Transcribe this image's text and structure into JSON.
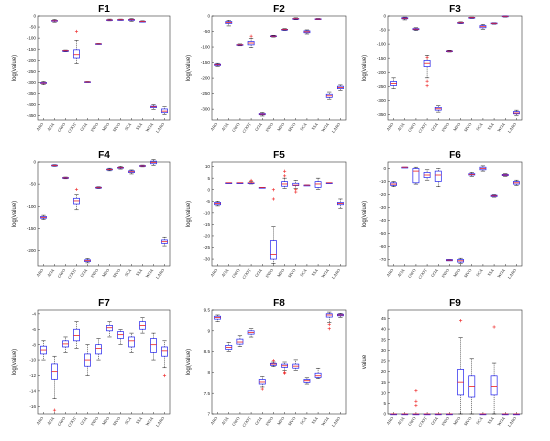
{
  "chart_data": [
    {
      "type": "box",
      "title": "F1",
      "ylabel": "log(value)",
      "ylim": [
        -470,
        0
      ],
      "yticks": [
        0,
        -50,
        -100,
        -150,
        -200,
        -250,
        -300,
        -350,
        -400,
        -450
      ],
      "categories": [
        "ARO",
        "AOA",
        "GWO",
        "COOT",
        "GOA",
        "INFO",
        "MFO",
        "MVO",
        "SCA",
        "SSA",
        "WOA",
        "LARO"
      ],
      "boxes": [
        [
          -310,
          -305,
          -303,
          -300,
          -296
        ],
        [
          -28,
          -24,
          -22,
          -20,
          -16
        ],
        [
          -161,
          -158,
          -157,
          -156,
          -154
        ],
        [
          -215,
          -190,
          -175,
          -153,
          -110
        ],
        [
          -300,
          -299,
          -298,
          -297,
          -296
        ],
        [
          -128,
          -127,
          -126,
          -125,
          -124
        ],
        [
          -22,
          -19,
          -18,
          -17,
          -14
        ],
        [
          -20,
          -18,
          -17,
          -16,
          -14
        ],
        [
          -24,
          -20,
          -17,
          -15,
          -12
        ],
        [
          -28,
          -26,
          -25,
          -24,
          -22
        ],
        [
          -422,
          -414,
          -410,
          -407,
          -400
        ],
        [
          -445,
          -437,
          -430,
          -420,
          -410
        ]
      ],
      "outliers": [
        [],
        [],
        [],
        [
          [
            9,
            -70
          ]
        ],
        [],
        [],
        [],
        [],
        [],
        [],
        [],
        []
      ]
    },
    {
      "type": "box",
      "title": "F2",
      "ylabel": "log(value)",
      "ylim": [
        -335,
        0
      ],
      "yticks": [
        0,
        -50,
        -100,
        -150,
        -200,
        -250,
        -300
      ],
      "categories": [
        "ARO",
        "AOA",
        "GWO",
        "COOT",
        "GOA",
        "INFO",
        "MFO",
        "MVO",
        "SCA",
        "SSA",
        "WOA",
        "LARO"
      ],
      "boxes": [
        [
          -162,
          -159,
          -157,
          -155,
          -152
        ],
        [
          -32,
          -24,
          -21,
          -18,
          -14
        ],
        [
          -96,
          -94,
          -93,
          -92,
          -90
        ],
        [
          -102,
          -93,
          -87,
          -82,
          -72
        ],
        [
          -322,
          -318,
          -316,
          -314,
          -311
        ],
        [
          -68,
          -66,
          -65,
          -64,
          -62
        ],
        [
          -47,
          -45,
          -44,
          -43,
          -41
        ],
        [
          -12,
          -10,
          -9,
          -8,
          -6
        ],
        [
          -58,
          -54,
          -51,
          -48,
          -45
        ],
        [
          -12,
          -11,
          -10,
          -9,
          -8
        ],
        [
          -268,
          -262,
          -257,
          -252,
          -245
        ],
        [
          -240,
          -234,
          -230,
          -226,
          -222
        ]
      ],
      "outliers": [
        [],
        [],
        [],
        [
          [
            9,
            -65
          ]
        ],
        [],
        [],
        [],
        [],
        [],
        [],
        [],
        []
      ]
    },
    {
      "type": "box",
      "title": "F3",
      "ylabel": "log(value)",
      "ylim": [
        -370,
        0
      ],
      "yticks": [
        0,
        -50,
        -100,
        -150,
        -200,
        -250,
        -300,
        -350
      ],
      "categories": [
        "ARO",
        "AOA",
        "GWO",
        "COOT",
        "GOA",
        "INFO",
        "MFO",
        "MVO",
        "SCA",
        "SSA",
        "WOA",
        "LARO"
      ],
      "boxes": [
        [
          -258,
          -247,
          -240,
          -233,
          -220
        ],
        [
          -14,
          -10,
          -8,
          -6,
          -4
        ],
        [
          -52,
          -49,
          -47,
          -45,
          -42
        ],
        [
          -220,
          -180,
          -168,
          -158,
          -140
        ],
        [
          -342,
          -335,
          -330,
          -325,
          -318
        ],
        [
          -128,
          -126,
          -125,
          -124,
          -122
        ],
        [
          -27,
          -25,
          -24,
          -23,
          -21
        ],
        [
          -9,
          -7,
          -6,
          -5,
          -4
        ],
        [
          -48,
          -42,
          -38,
          -34,
          -30
        ],
        [
          -29,
          -27,
          -26,
          -25,
          -24
        ],
        [
          -4,
          -2,
          -1,
          0,
          1
        ],
        [
          -355,
          -348,
          -345,
          -340,
          -335
        ]
      ],
      "outliers": [
        [],
        [],
        [],
        [
          [
            9,
            -248
          ],
          [
            9,
            -232
          ],
          [
            9,
            -148
          ]
        ],
        [],
        [],
        [],
        [],
        [],
        [],
        [],
        []
      ]
    },
    {
      "type": "box",
      "title": "F4",
      "ylabel": "log(value)",
      "ylim": [
        -235,
        0
      ],
      "yticks": [
        0,
        -50,
        -100,
        -150,
        -200
      ],
      "categories": [
        "ARO",
        "AOA",
        "GWO",
        "COOT",
        "GOA",
        "INFO",
        "MFO",
        "MVO",
        "SCA",
        "SSA",
        "WOA",
        "LARO"
      ],
      "boxes": [
        [
          -130,
          -127,
          -125,
          -123,
          -120
        ],
        [
          -10,
          -9,
          -8,
          -7,
          -6
        ],
        [
          -38,
          -37,
          -36,
          -35,
          -34
        ],
        [
          -108,
          -95,
          -88,
          -82,
          -74
        ],
        [
          -228,
          -225,
          -223,
          -221,
          -218
        ],
        [
          -60,
          -59,
          -58,
          -57,
          -56
        ],
        [
          -20,
          -18,
          -17,
          -16,
          -14
        ],
        [
          -16,
          -14,
          -13,
          -12,
          -10
        ],
        [
          -27,
          -24,
          -22,
          -20,
          -18
        ],
        [
          -11,
          -10,
          -9,
          -8,
          -7
        ],
        [
          -8,
          -4,
          -1,
          2,
          6
        ],
        [
          -190,
          -184,
          -180,
          -176,
          -170
        ]
      ],
      "outliers": [
        [],
        [],
        [],
        [
          [
            9,
            -62
          ]
        ],
        [],
        [],
        [],
        [],
        [],
        [],
        [],
        []
      ]
    },
    {
      "type": "box",
      "title": "F5",
      "ylabel": "log(value)",
      "ylim": [
        -33,
        12
      ],
      "yticks": [
        10,
        5,
        0,
        -5,
        -10,
        -15,
        -20,
        -25,
        -30
      ],
      "categories": [
        "ARO",
        "AOA",
        "GWO",
        "COOT",
        "GOA",
        "INFO",
        "MFO",
        "MVO",
        "SCA",
        "SSA",
        "WOA",
        "LARO"
      ],
      "boxes": [
        [
          -7,
          -6.5,
          -6,
          -5.5,
          -5
        ],
        [
          3,
          3,
          3,
          3,
          3
        ],
        [
          3,
          3,
          3,
          3,
          3
        ],
        [
          2.5,
          3,
          3,
          3,
          3.5
        ],
        [
          1,
          1,
          1,
          1,
          1
        ],
        [
          -32,
          -30,
          -28,
          -22,
          -16
        ],
        [
          0.5,
          1.5,
          2.5,
          3.5,
          5
        ],
        [
          0.5,
          1.8,
          2,
          2.8,
          4
        ],
        [
          2,
          2,
          2,
          2,
          2
        ],
        [
          0,
          1,
          2.5,
          3.5,
          5
        ],
        [
          3,
          3,
          3,
          3,
          3
        ],
        [
          -8,
          -6.5,
          -6,
          -5.5,
          -4
        ]
      ],
      "outliers": [
        [],
        [],
        [],
        [
          [
            9,
            4
          ]
        ],
        [],
        [
          [
            9,
            0
          ],
          [
            9,
            -4
          ]
        ],
        [
          [
            9,
            6
          ],
          [
            9,
            8
          ]
        ],
        [
          [
            9,
            0
          ],
          [
            9,
            -1
          ]
        ],
        [],
        [],
        [],
        []
      ]
    },
    {
      "type": "box",
      "title": "F6",
      "ylabel": "log(value)",
      "ylim": [
        -75,
        5
      ],
      "yticks": [
        0,
        -10,
        -20,
        -30,
        -40,
        -50,
        -60,
        -70
      ],
      "categories": [
        "ARO",
        "AOA",
        "GWO",
        "COOT",
        "GOA",
        "INFO",
        "MFO",
        "MVO",
        "SCA",
        "SSA",
        "WOA",
        "LARO"
      ],
      "boxes": [
        [
          -14,
          -13,
          -12,
          -11,
          -10
        ],
        [
          1,
          1,
          1,
          1,
          1
        ],
        [
          -12,
          -11,
          -2,
          0,
          1
        ],
        [
          -9,
          -7,
          -5,
          -3,
          -1
        ],
        [
          -14,
          -10,
          -5,
          -2,
          0
        ],
        [
          -71,
          -71,
          -70.5,
          -70,
          -70
        ],
        [
          -73,
          -72,
          -71,
          -70,
          -69
        ],
        [
          -6,
          -5,
          -4.5,
          -4,
          -3
        ],
        [
          -2,
          -1,
          0,
          1,
          2
        ],
        [
          -22,
          -21.5,
          -21,
          -20.5,
          -20
        ],
        [
          -6,
          -5.5,
          -5,
          -4.5,
          -4
        ],
        [
          -13,
          -12,
          -11,
          -10,
          -9
        ]
      ],
      "outliers": [
        [],
        [],
        [],
        [],
        [],
        [],
        [],
        [],
        [],
        [],
        [],
        []
      ]
    },
    {
      "type": "box",
      "title": "F7",
      "ylabel": "log(value)",
      "ylim": [
        -17,
        -3.5
      ],
      "yticks": [
        -4,
        -6,
        -8,
        -10,
        -12,
        -14,
        -16
      ],
      "categories": [
        "ARO",
        "AOA",
        "GWO",
        "COOT",
        "GOA",
        "INFO",
        "MFO",
        "MVO",
        "SCA",
        "SSA",
        "WOA",
        "LARO"
      ],
      "boxes": [
        [
          -10,
          -9.2,
          -8.7,
          -8.2,
          -7.5
        ],
        [
          -15,
          -12.5,
          -11.5,
          -10.5,
          -9.5
        ],
        [
          -9,
          -8.3,
          -7.9,
          -7.5,
          -7
        ],
        [
          -8.5,
          -7.5,
          -6.8,
          -6,
          -5
        ],
        [
          -12,
          -10.8,
          -10,
          -9.2,
          -8
        ],
        [
          -10,
          -9.2,
          -8.5,
          -8,
          -7.2
        ],
        [
          -7,
          -6.2,
          -5.8,
          -5.5,
          -5
        ],
        [
          -8,
          -7.2,
          -6.7,
          -6.3,
          -6
        ],
        [
          -9,
          -8.3,
          -7.5,
          -7,
          -6.5
        ],
        [
          -6.5,
          -6,
          -5.5,
          -5,
          -4.5
        ],
        [
          -10,
          -9,
          -8,
          -7.2,
          -6.5
        ],
        [
          -11,
          -9.5,
          -8.8,
          -8.3,
          -7.5
        ]
      ],
      "outliers": [
        [],
        [
          [
            9,
            -16.5
          ]
        ],
        [],
        [],
        [],
        [],
        [],
        [],
        [],
        [],
        [],
        [
          [
            9,
            -12
          ]
        ]
      ]
    },
    {
      "type": "box",
      "title": "F8",
      "ylabel": "log(value)",
      "ylim": [
        7,
        9.5
      ],
      "yticks": [
        9.5,
        9,
        8.5,
        8,
        7.5,
        7
      ],
      "categories": [
        "ARO",
        "AOA",
        "GWO",
        "COOT",
        "GOA",
        "INFO",
        "MFO",
        "MVO",
        "SCA",
        "SSA",
        "WOA",
        "LARO"
      ],
      "boxes": [
        [
          9.22,
          9.28,
          9.32,
          9.35,
          9.38
        ],
        [
          8.5,
          8.55,
          8.6,
          8.65,
          8.72
        ],
        [
          8.62,
          8.68,
          8.73,
          8.8,
          8.88
        ],
        [
          8.85,
          8.92,
          8.96,
          9,
          9.05
        ],
        [
          7.65,
          7.72,
          7.77,
          7.83,
          7.9
        ],
        [
          8.14,
          8.17,
          8.2,
          8.22,
          8.25
        ],
        [
          8.05,
          8.12,
          8.16,
          8.2,
          8.25
        ],
        [
          8.05,
          8.1,
          8.15,
          8.2,
          8.3
        ],
        [
          7.72,
          7.76,
          7.8,
          7.83,
          7.87
        ],
        [
          7.85,
          7.88,
          7.92,
          7.98,
          8.1
        ],
        [
          9.2,
          9.33,
          9.38,
          9.41,
          9.45
        ],
        [
          9.32,
          9.36,
          9.38,
          9.4,
          9.42
        ]
      ],
      "outliers": [
        [],
        [],
        [],
        [],
        [
          [
            9,
            7.6
          ]
        ],
        [
          [
            9,
            8.28
          ]
        ],
        [
          [
            9,
            7.98
          ],
          [
            9,
            8.0
          ]
        ],
        [],
        [],
        [],
        [
          [
            9,
            9.05
          ],
          [
            9,
            9.15
          ]
        ],
        []
      ]
    },
    {
      "type": "box",
      "title": "F9",
      "ylabel": "value",
      "ylim": [
        0,
        49
      ],
      "yticks": [
        0,
        5,
        10,
        15,
        20,
        25,
        30,
        35,
        40,
        45
      ],
      "categories": [
        "ARO",
        "AOA",
        "GWO",
        "COOT",
        "GOA",
        "INFO",
        "MFO",
        "MVO",
        "SCA",
        "SSA",
        "WOA",
        "LARO"
      ],
      "boxes": [
        [
          0,
          0,
          0,
          0,
          0
        ],
        [
          0,
          0,
          0,
          0,
          0
        ],
        [
          0,
          0,
          0,
          0,
          0
        ],
        [
          0,
          0,
          0,
          0,
          0
        ],
        [
          0,
          0,
          0,
          0,
          0
        ],
        [
          0,
          0,
          0,
          0,
          0
        ],
        [
          0,
          9,
          15,
          21,
          36
        ],
        [
          0,
          8,
          13,
          18,
          26
        ],
        [
          0,
          0,
          0,
          0,
          0
        ],
        [
          0,
          9,
          13,
          18,
          24
        ],
        [
          0,
          0,
          0,
          0,
          0
        ],
        [
          0,
          0,
          0,
          0,
          0
        ]
      ],
      "outliers": [
        [],
        [],
        [
          [
            9,
            4
          ],
          [
            9,
            6
          ],
          [
            9,
            11
          ]
        ],
        [],
        [],
        [],
        [
          [
            9,
            44
          ]
        ],
        [],
        [],
        [
          [
            9,
            41
          ]
        ],
        [],
        []
      ]
    }
  ],
  "colors": {
    "box": "#2222ee",
    "median": "#ee2222",
    "outlier": "#ee2222",
    "axis": "#333333"
  }
}
